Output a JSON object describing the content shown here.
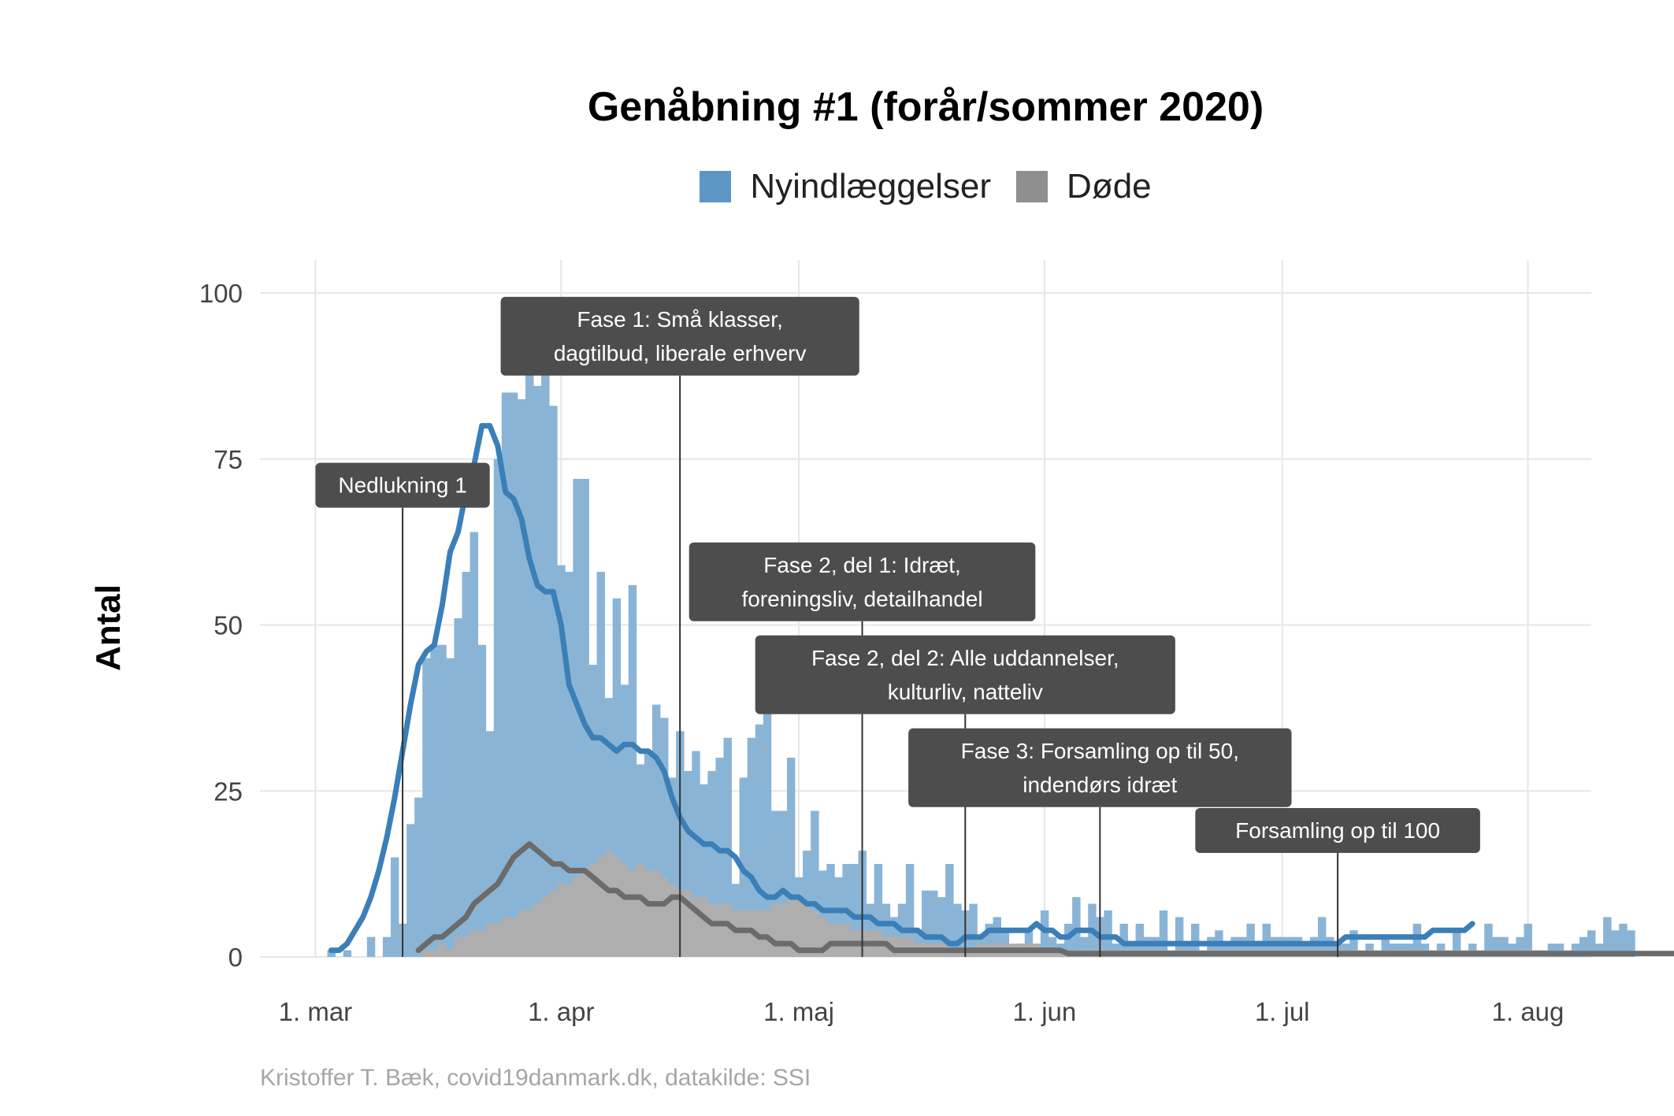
{
  "title": "Genåbning #1 (forår/sommer 2020)",
  "caption": "Kristoffer T. Bæk, covid19danmark.dk, datakilde: SSI",
  "legend": [
    {
      "label": "Nyindlæggelser",
      "color": "#5b96c4"
    },
    {
      "label": "Døde",
      "color": "#8f8f8f"
    }
  ],
  "chart_data": {
    "type": "bar",
    "ylabel": "Antal",
    "ylim": [
      0,
      100
    ],
    "yticks": [
      0,
      25,
      50,
      75,
      100
    ],
    "xticks": [
      {
        "date": "2020-03-01",
        "label": "1. mar"
      },
      {
        "date": "2020-04-01",
        "label": "1. apr"
      },
      {
        "date": "2020-05-01",
        "label": "1. maj"
      },
      {
        "date": "2020-06-01",
        "label": "1. jun"
      },
      {
        "date": "2020-07-01",
        "label": "1. jul"
      },
      {
        "date": "2020-08-01",
        "label": "1. aug"
      }
    ],
    "xlim": [
      "2020-02-23",
      "2020-08-09"
    ],
    "grid": true,
    "legend_position": "top",
    "series": [
      {
        "name": "Nyindlæggelser",
        "type": "bar",
        "color": "#8ab4d6",
        "start_date": "2020-03-03",
        "values": [
          1,
          0,
          1,
          0,
          0,
          3,
          0,
          3,
          15,
          5,
          20,
          24,
          45,
          47,
          47,
          45,
          51,
          58,
          64,
          47,
          34,
          75,
          85,
          85,
          84,
          92,
          86,
          88,
          83,
          59,
          58,
          72,
          72,
          44,
          58,
          39,
          54,
          41,
          56,
          29,
          31,
          38,
          36,
          27,
          34,
          28,
          31,
          26,
          28,
          30,
          33,
          11,
          27,
          33,
          35,
          38,
          22,
          22,
          30,
          12,
          16,
          22,
          13,
          14,
          12,
          14,
          14,
          16,
          8,
          14,
          8,
          6,
          8,
          14,
          4,
          10,
          10,
          9,
          14,
          8,
          7,
          8,
          3,
          5,
          6,
          4,
          1,
          2,
          4,
          2,
          7,
          3,
          2,
          5,
          9,
          3,
          8,
          6,
          7,
          2,
          5,
          2,
          5,
          3,
          3,
          7,
          0,
          6,
          2,
          5,
          1,
          3,
          4,
          2,
          3,
          3,
          5,
          2,
          5,
          3,
          3,
          3,
          3,
          2,
          3,
          6,
          3,
          2,
          2,
          4,
          1,
          2,
          1,
          3,
          2,
          2,
          2,
          5,
          2,
          1,
          2,
          1,
          4,
          1,
          2,
          1,
          5,
          3,
          3,
          2,
          3,
          5,
          1,
          1,
          2,
          2,
          1,
          2,
          3,
          4,
          2,
          6,
          4,
          5,
          4
        ],
        "smooth": [
          1,
          1,
          2,
          4,
          6,
          9,
          13,
          18,
          24,
          31,
          38,
          44,
          46,
          47,
          53,
          61,
          64,
          70,
          74,
          80,
          80,
          77,
          70,
          69,
          66,
          60,
          56,
          55,
          55,
          50,
          41,
          38,
          35,
          33,
          33,
          32,
          31,
          32,
          32,
          31,
          31,
          30,
          28,
          24,
          21,
          19,
          18,
          17,
          17,
          16,
          16,
          15,
          13,
          12,
          10,
          9,
          9,
          10,
          9,
          9,
          8,
          8,
          7,
          7,
          7,
          7,
          6,
          6,
          6,
          5,
          5,
          5,
          4,
          4,
          4,
          3,
          3,
          3,
          2,
          2,
          3,
          3,
          3,
          4,
          4,
          4,
          4,
          4,
          4,
          5,
          4,
          4,
          3,
          3,
          4,
          4,
          4,
          3,
          3,
          3,
          2,
          2,
          2,
          2,
          2,
          2,
          2,
          2,
          2,
          2,
          2,
          2,
          2,
          2,
          2,
          2,
          2,
          2,
          2,
          2,
          2,
          2,
          2,
          2,
          2,
          2,
          2,
          2,
          3,
          3,
          3,
          3,
          3,
          3,
          3,
          3,
          3,
          3,
          3,
          4,
          4,
          4,
          4,
          4,
          5
        ]
      },
      {
        "name": "Døde",
        "type": "bar",
        "color": "#aeaeae",
        "start_date": "2020-03-14",
        "values": [
          0,
          1,
          1,
          2,
          1,
          3,
          3,
          4,
          4,
          5,
          5,
          6,
          6,
          7,
          7,
          8,
          9,
          10,
          11,
          11,
          12,
          13,
          14,
          15,
          16,
          15,
          14,
          13,
          14,
          13,
          13,
          12,
          11,
          10,
          10,
          9,
          9,
          8,
          8,
          8,
          7,
          7,
          7,
          7,
          7,
          8,
          8,
          9,
          9,
          8,
          7,
          6,
          5,
          5,
          5,
          4,
          4,
          4,
          4,
          3,
          3,
          3,
          3,
          2,
          2,
          2,
          2,
          1,
          1,
          1,
          1,
          2,
          2,
          2,
          2,
          2,
          2,
          2,
          2,
          1,
          1,
          1,
          1,
          1,
          1,
          1,
          1,
          1,
          1,
          1,
          1,
          1,
          1,
          1,
          1,
          1,
          1,
          1,
          1,
          1,
          1,
          1,
          1,
          1,
          1,
          1,
          1,
          1,
          1,
          1,
          1,
          1,
          1,
          1,
          1,
          1,
          1,
          1,
          1,
          1,
          1,
          1,
          1,
          1,
          1,
          1,
          1,
          1,
          1,
          1,
          1,
          1,
          1,
          1,
          1,
          1,
          1,
          1,
          1,
          1,
          1,
          1,
          1
        ],
        "smooth": [
          1,
          2,
          3,
          3,
          4,
          5,
          6,
          8,
          9,
          10,
          11,
          13,
          15,
          16,
          17,
          16,
          15,
          14,
          14,
          13,
          13,
          13,
          12,
          11,
          10,
          10,
          9,
          9,
          9,
          8,
          8,
          8,
          9,
          9,
          8,
          7,
          6,
          5,
          5,
          5,
          4,
          4,
          4,
          3,
          3,
          2,
          2,
          2,
          1,
          1,
          1,
          1,
          2,
          2,
          2,
          2,
          2,
          2,
          2,
          2,
          1,
          1,
          1,
          1,
          1,
          1,
          1,
          1,
          1,
          1,
          1,
          1,
          1,
          1,
          1,
          1,
          1,
          1,
          1,
          1,
          1,
          1,
          0.5,
          0.5,
          0.5,
          0.5,
          0.5,
          0.5,
          0.5,
          0.5,
          0.5,
          0.5,
          0.5,
          0.5,
          0.5,
          0.5,
          0.5,
          0.5,
          0.5,
          0.5,
          0.5,
          0.5,
          0.5,
          0.5,
          0.5,
          0.5,
          0.5,
          0.5,
          0.5,
          0.5,
          0.5,
          0.5,
          0.5,
          0.5,
          0.5,
          0.5,
          0.5,
          0.5,
          0.5,
          0.5,
          0.5,
          0.5,
          0.5,
          0.5,
          0.5,
          0.5,
          0.5,
          0.5,
          0.5,
          0.5,
          0.5,
          0.5,
          0.5,
          0.5,
          0.5,
          0.5,
          0.5,
          0.5,
          0.5,
          0.5,
          0.5,
          0.5,
          0.5,
          0.5,
          0.5,
          0.5,
          0.5,
          0.5,
          0.5,
          0.5,
          0.5,
          0.5,
          0.5,
          0.5,
          0.5,
          0.5,
          0.5,
          0.5,
          0.5,
          0.5
        ]
      }
    ],
    "annotations": [
      {
        "label": [
          "Nedlukning 1"
        ],
        "date": "2020-03-12",
        "label_y": 73
      },
      {
        "label": [
          "Fase 1: Små klasser,",
          "dagtilbud, liberale erhverv"
        ],
        "date": "2020-04-16",
        "label_y": 98
      },
      {
        "label": [
          "Fase 2, del 1: Idræt,",
          "foreningsliv, detailhandel"
        ],
        "date": "2020-05-09",
        "label_y": 61
      },
      {
        "label": [
          "Fase 2, del 2: Alle uddannelser,",
          "kulturliv, natteliv"
        ],
        "date": "2020-05-22",
        "label_y": 47
      },
      {
        "label": [
          "Fase 3: Forsamling op til 50,",
          "indendørs idræt"
        ],
        "date": "2020-06-08",
        "label_y": 33
      },
      {
        "label": [
          "Forsamling op til 100"
        ],
        "date": "2020-07-08",
        "label_y": 21
      }
    ]
  }
}
